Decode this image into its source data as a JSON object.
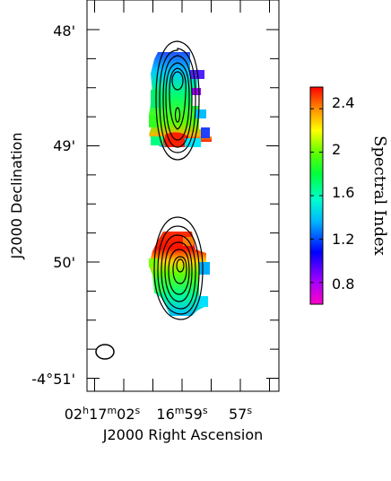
{
  "chart_data": {
    "type": "heatmap",
    "description_kind": "radio spectral index map with intensity contours",
    "xlabel": "J2000 Right Ascension",
    "ylabel": "J2000 Declination",
    "x_ticks": [
      {
        "ra_s": 2,
        "label": "02h17m02s",
        "parts": [
          "02",
          "h",
          "17",
          "m",
          "02",
          "s"
        ]
      },
      {
        "ra_s": -1,
        "label": "16m59s",
        "parts": [
          "16",
          "m",
          "59",
          "s"
        ]
      },
      {
        "ra_s": -3,
        "label": "57s",
        "parts": [
          "57",
          "s"
        ]
      }
    ],
    "x_minor_ticks_ra_s": [
      3,
      2,
      1,
      0,
      -1,
      -2,
      -3,
      -4
    ],
    "y_ticks": [
      {
        "dec_arcmin": 48,
        "label": "48'"
      },
      {
        "dec_arcmin": 49,
        "label": "49'"
      },
      {
        "dec_arcmin": 50,
        "label": "50'"
      },
      {
        "dec_arcmin": 51,
        "label": "-4°51'"
      }
    ],
    "x_range_ra_s": [
      3.3,
      -4.8
    ],
    "y_range_dec_arcmin": [
      47.75,
      51.1
    ],
    "colorbar": {
      "title": "Spectral Index",
      "range": [
        0.6,
        2.6
      ],
      "ticks": [
        0.8,
        1.2,
        1.6,
        2,
        2.4
      ],
      "tick_labels": [
        "0.8",
        "1.2",
        "1.6",
        "2",
        "2.4"
      ],
      "colormap": [
        "#ff00c8",
        "#a000ff",
        "#0000ff",
        "#00b4ff",
        "#00ffd0",
        "#00ff3c",
        "#64ff00",
        "#ffff00",
        "#ff8c00",
        "#ff0000"
      ]
    },
    "lobes": [
      {
        "name": "",
        "center_ra_s": -1.1,
        "center_dec_arcmin": 48.3,
        "spectral_index_range": [
          1.3,
          2.5
        ],
        "contour_levels": 7
      },
      {
        "name": "",
        "center_ra_s": -1.1,
        "center_dec_arcmin": 50.05,
        "spectral_index_range": [
          1.4,
          2.5
        ],
        "contour_levels": 7
      }
    ],
    "beam": {
      "ra_s": 2.5,
      "dec_arcmin": 50.8
    }
  }
}
